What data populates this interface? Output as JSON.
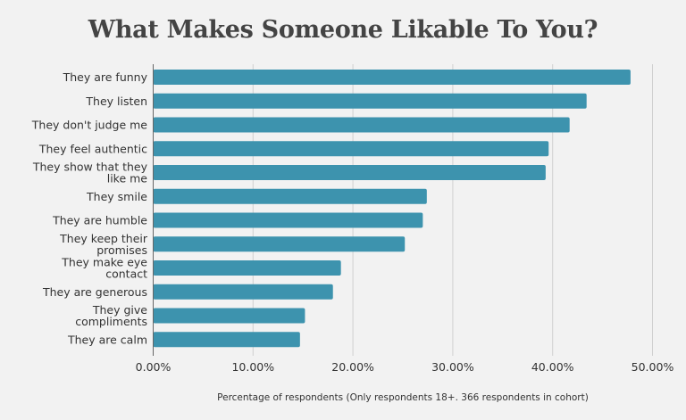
{
  "chart_data": {
    "type": "bar",
    "orientation": "horizontal",
    "title": "What Makes Someone Likable To You?",
    "xlabel": "Percentage of respondents (Only respondents 18+. 366 respondents in cohort)",
    "ylabel": "",
    "categories": [
      [
        "They are funny"
      ],
      [
        "They listen"
      ],
      [
        "They don't judge me"
      ],
      [
        "They feel authentic"
      ],
      [
        "They show that they",
        "like me"
      ],
      [
        "They smile"
      ],
      [
        "They are humble"
      ],
      [
        "They keep their",
        "promises"
      ],
      [
        "They make eye",
        "contact"
      ],
      [
        "They are generous"
      ],
      [
        "They give",
        "compliments"
      ],
      [
        "They are calm"
      ]
    ],
    "values": [
      47.8,
      43.4,
      41.7,
      39.6,
      39.3,
      27.4,
      27.0,
      25.2,
      18.8,
      18.0,
      15.2,
      14.7
    ],
    "xlim": [
      0,
      50
    ],
    "xticks": [
      "0.00%",
      "10.00%",
      "20.00%",
      "30.00%",
      "40.00%",
      "50.00%"
    ],
    "grid": "vertical",
    "legend": "none",
    "bar_color": "#3d93ae"
  }
}
